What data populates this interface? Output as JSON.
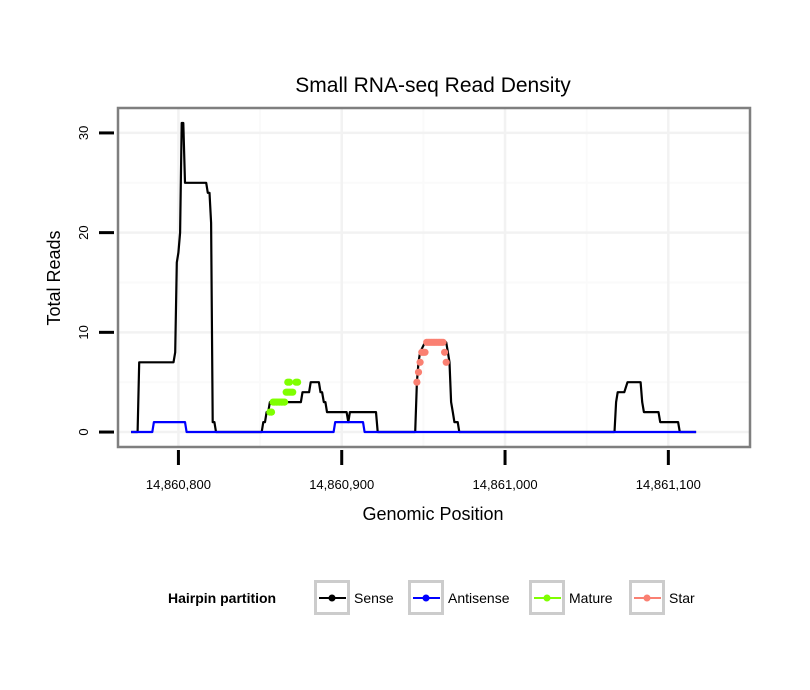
{
  "chart_data": {
    "type": "line",
    "title": "Small RNA-seq Read Density",
    "xlabel": "Genomic Position",
    "ylabel": "Total Reads",
    "xlim": [
      14860763,
      14861150
    ],
    "ylim": [
      -1.5,
      32.5
    ],
    "x_ticks": [
      14860800,
      14860900,
      14861000,
      14861100
    ],
    "x_tick_labels": [
      "14,860,800",
      "14,860,900",
      "14,861,000",
      "14,861,100"
    ],
    "y_ticks": [
      0,
      10,
      20,
      30
    ],
    "y_tick_labels": [
      "0",
      "10",
      "20",
      "30"
    ],
    "grid": true,
    "legend": {
      "title": "Hairpin partition",
      "position": "bottom",
      "entries": [
        {
          "label": "Sense",
          "color": "#000000"
        },
        {
          "label": "Antisense",
          "color": "#0000ff"
        },
        {
          "label": "Mature",
          "color": "#7fff00"
        },
        {
          "label": "Star",
          "color": "#fa8072"
        }
      ]
    },
    "series": [
      {
        "name": "Sense",
        "color": "#000000",
        "style": "line",
        "points": [
          [
            14860771,
            0
          ],
          [
            14860775,
            0
          ],
          [
            14860776,
            7
          ],
          [
            14860777,
            7
          ],
          [
            14860797,
            7
          ],
          [
            14860798,
            8
          ],
          [
            14860799,
            17
          ],
          [
            14860800,
            18
          ],
          [
            14860801,
            20
          ],
          [
            14860802,
            31
          ],
          [
            14860803,
            31
          ],
          [
            14860804,
            25
          ],
          [
            14860817,
            25
          ],
          [
            14860818,
            24
          ],
          [
            14860819,
            24
          ],
          [
            14860820,
            21
          ],
          [
            14860821,
            1
          ],
          [
            14860822,
            1
          ],
          [
            14860823,
            0
          ],
          [
            14860851,
            0
          ],
          [
            14860852,
            1
          ],
          [
            14860853,
            1
          ],
          [
            14860854,
            2
          ],
          [
            14860855,
            2
          ],
          [
            14860856,
            3
          ],
          [
            14860875,
            3
          ],
          [
            14860876,
            4
          ],
          [
            14860880,
            4
          ],
          [
            14860881,
            5
          ],
          [
            14860886,
            5
          ],
          [
            14860887,
            4
          ],
          [
            14860888,
            4
          ],
          [
            14860889,
            3
          ],
          [
            14860890,
            3
          ],
          [
            14860891,
            2
          ],
          [
            14860903,
            2
          ],
          [
            14860904,
            1
          ],
          [
            14860905,
            2
          ],
          [
            14860921,
            2
          ],
          [
            14860922,
            0
          ],
          [
            14860945,
            0
          ],
          [
            14860946,
            5
          ],
          [
            14860947,
            7
          ],
          [
            14860948,
            8
          ],
          [
            14860951,
            9
          ],
          [
            14860964,
            9
          ],
          [
            14860965,
            8
          ],
          [
            14860966,
            7
          ],
          [
            14860967,
            3
          ],
          [
            14860968,
            2
          ],
          [
            14860969,
            1
          ],
          [
            14860971,
            1
          ],
          [
            14860972,
            0
          ],
          [
            14861067,
            0
          ],
          [
            14861068,
            3
          ],
          [
            14861069,
            4
          ],
          [
            14861073,
            4
          ],
          [
            14861075,
            5
          ],
          [
            14861083,
            5
          ],
          [
            14861084,
            3
          ],
          [
            14861085,
            2
          ],
          [
            14861094,
            2
          ],
          [
            14861095,
            1
          ],
          [
            14861106,
            1
          ],
          [
            14861107,
            0
          ],
          [
            14861117,
            0
          ]
        ]
      },
      {
        "name": "Antisense",
        "color": "#0000ff",
        "style": "line",
        "points": [
          [
            14860771,
            0
          ],
          [
            14860784,
            0
          ],
          [
            14860785,
            1
          ],
          [
            14860804,
            1
          ],
          [
            14860805,
            0
          ],
          [
            14860895,
            0
          ],
          [
            14860896,
            1
          ],
          [
            14860913,
            1
          ],
          [
            14860914,
            0
          ],
          [
            14861117,
            0
          ]
        ]
      },
      {
        "name": "Mature",
        "color": "#7fff00",
        "style": "points",
        "points": [
          [
            14860856,
            2
          ],
          [
            14860857,
            2
          ],
          [
            14860858,
            3
          ],
          [
            14860859,
            3
          ],
          [
            14860860,
            3
          ],
          [
            14860861,
            3
          ],
          [
            14860862,
            3
          ],
          [
            14860863,
            3
          ],
          [
            14860864,
            3
          ],
          [
            14860865,
            3
          ],
          [
            14860866,
            4
          ],
          [
            14860867,
            4
          ],
          [
            14860868,
            4
          ],
          [
            14860869,
            4
          ],
          [
            14860870,
            4
          ],
          [
            14860867,
            5
          ],
          [
            14860868,
            5
          ],
          [
            14860872,
            5
          ],
          [
            14860873,
            5
          ]
        ]
      },
      {
        "name": "Star",
        "color": "#fa8072",
        "style": "points",
        "points": [
          [
            14860946,
            5
          ],
          [
            14860947,
            6
          ],
          [
            14860948,
            7
          ],
          [
            14860949,
            8
          ],
          [
            14860950,
            8
          ],
          [
            14860951,
            8
          ],
          [
            14860952,
            9
          ],
          [
            14860953,
            9
          ],
          [
            14860954,
            9
          ],
          [
            14860955,
            9
          ],
          [
            14860956,
            9
          ],
          [
            14860957,
            9
          ],
          [
            14860958,
            9
          ],
          [
            14860959,
            9
          ],
          [
            14860960,
            9
          ],
          [
            14860961,
            9
          ],
          [
            14860962,
            9
          ],
          [
            14860963,
            8
          ],
          [
            14860964,
            7
          ]
        ]
      }
    ]
  }
}
